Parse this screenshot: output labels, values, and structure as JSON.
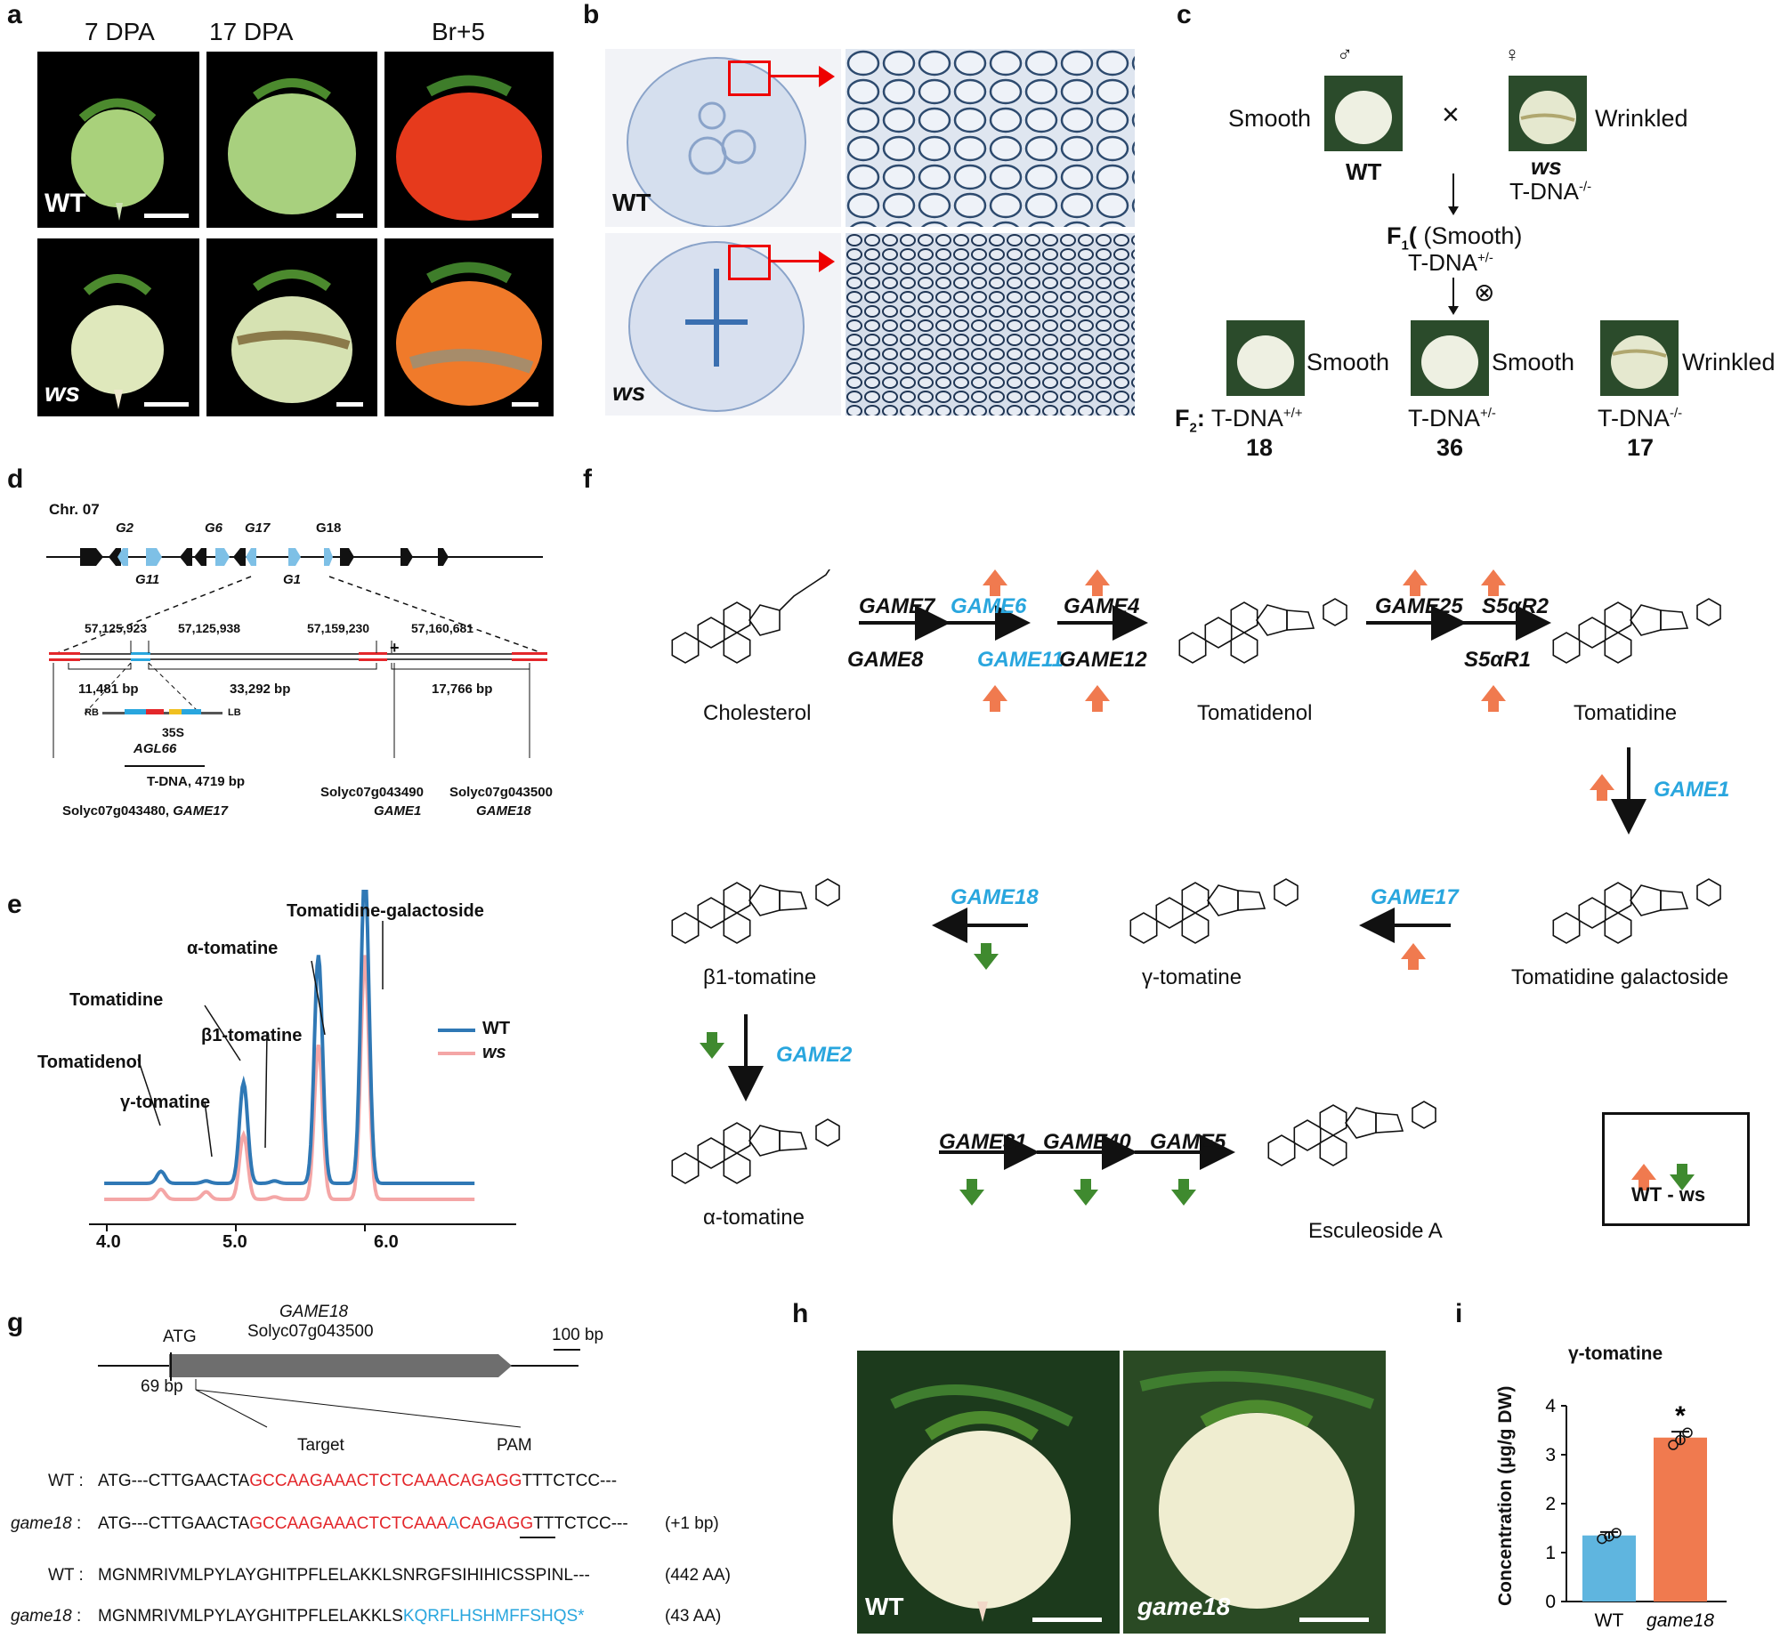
{
  "panels": {
    "a": "a",
    "b": "b",
    "c": "c",
    "d": "d",
    "e": "e",
    "f": "f",
    "g": "g",
    "h": "h",
    "i": "i"
  },
  "a": {
    "cols": [
      "7 DPA",
      "17 DPA",
      "Br+5"
    ],
    "row1": "WT",
    "row2": "ws"
  },
  "b": {
    "row1": "WT",
    "row2": "ws"
  },
  "c": {
    "male": "♂",
    "female": "♀",
    "smooth": "Smooth",
    "wrinkled": "Wrinkled",
    "cross": "×",
    "wt": "WT",
    "ws": "ws",
    "tdna_mm": "T-DNA",
    "mm_sup": "-/-",
    "f1": "F",
    "f1_sub": "1",
    "f1_rest": " (Smooth)",
    "f1_tdna": "T-DNA",
    "pm_sup": "+/-",
    "selfing": "⊗",
    "f2": "F",
    "f2_sub": "2",
    "f2_colon": ":",
    "f2_smooth1": "Smooth",
    "f2_smooth2": "Smooth",
    "f2_wrinkled": "Wrinkled",
    "pp_sup": "+/+",
    "n1": "18",
    "n2": "36",
    "n3": "17"
  },
  "d": {
    "chr": "Chr. 07",
    "g2": "G2",
    "g6": "G6",
    "g17": "G17",
    "g18": "G18",
    "g11": "G11",
    "g1": "G1",
    "pos1": "57,125,923",
    "pos2": "57,125,938",
    "pos3": "57,159,230",
    "pos4": "57,160,681",
    "plus": "+",
    "len1": "11,481 bp",
    "len2": "33,292 bp",
    "len3": "17,766 bp",
    "rb": "RB",
    "lb": "LB",
    "s35": "35S",
    "agl66": "AGL66",
    "tdna": "T-DNA,   4719 bp",
    "gene1a": "Solyc07g043480, ",
    "gene1b": "GAME17",
    "gene2a": "Solyc07g043490",
    "gene2b": "GAME1",
    "gene3a": "Solyc07g043500",
    "gene3b": "GAME18"
  },
  "e": {
    "peaks": [
      "Tomatidine-galactoside",
      "α-tomatine",
      "Tomatidine",
      "β1-tomatine",
      "Tomatidenol",
      "γ-tomatine"
    ],
    "legend_wt": "WT",
    "legend_ws": "ws",
    "ticks": [
      "4.0",
      "5.0",
      "6.0"
    ],
    "wt_color": "#2f78b5",
    "ws_color": "#f4a6a6"
  },
  "f": {
    "cholesterol": "Cholesterol",
    "tomatidenol": "Tomatidenol",
    "tomatidine": "Tomatidine",
    "tomgal": "Tomatidine galactoside",
    "gamma": "γ-tomatine",
    "beta1": "β1-tomatine",
    "alpha": "α-tomatine",
    "escul": "Esculeoside A",
    "game7": "GAME7",
    "game8": "GAME8",
    "game6": "GAME6",
    "game11": "GAME11",
    "game4": "GAME4",
    "game12": "GAME12",
    "game25": "GAME25",
    "s5a2": "S5αR2",
    "s5a1": "S5αR1",
    "game1": "GAME1",
    "game17": "GAME17",
    "game18": "GAME18",
    "game2": "GAME2",
    "game31": "GAME31",
    "game40": "GAME40",
    "game5": "GAME5",
    "legend": "WT - ws",
    "up_color": "#f07a4f",
    "down_color": "#3f8a2f"
  },
  "g": {
    "gene": "GAME18",
    "id": "Solyc07g043500",
    "atg": "ATG",
    "scale": "100 bp",
    "bp69": "69 bp",
    "target": "Target",
    "pam": "PAM",
    "wt_label": "WT :",
    "ko_label": "game18",
    ":": ":",
    "wt_seq_a": "ATG---CTTGAACTA",
    "wt_seq_b": "GCCAAGAAACTCTCAAACAGAGG",
    "wt_seq_c": "TTTCTCC---",
    "ko_seq_a": "ATG---CTTGAACTA",
    "ko_seq_b": "GCCAAGAAACTCTCAAA",
    "ko_seq_ins": "A",
    "ko_seq_c": "CAGAGG",
    "ko_seq_d": "TTTCTCC---",
    "ko_note": "(+1 bp)",
    "wt_prot": "MGNMRIVMLPYLAYGHITPFLELAKKLSNRGFSIHIHICSSPINL---",
    "wt_prot_note": "(442 AA)",
    "ko_prot_a": "MGNMRIVMLPYLAYGHITPFLELAKKLS",
    "ko_prot_b": "KQRFLHSHMFFSHQS*",
    "ko_prot_note": "(43 AA)"
  },
  "h": {
    "left": "WT",
    "right": "game18"
  },
  "i": {
    "chart_data": {
      "type": "bar",
      "title": "γ-tomatine",
      "ylabel": "Concentration (μg/g DW)",
      "categories": [
        "WT",
        "game18"
      ],
      "values": [
        1.35,
        3.35
      ],
      "points": [
        [
          1.28,
          1.33,
          1.4
        ],
        [
          3.2,
          3.3,
          3.45
        ]
      ],
      "errors": [
        0.07,
        0.12
      ],
      "ylim": [
        0,
        4
      ],
      "yticks": [
        "0",
        "1",
        "2",
        "3",
        "4"
      ],
      "colors": [
        "#5fb5df",
        "#f07a4f"
      ],
      "annotation": "*"
    }
  }
}
